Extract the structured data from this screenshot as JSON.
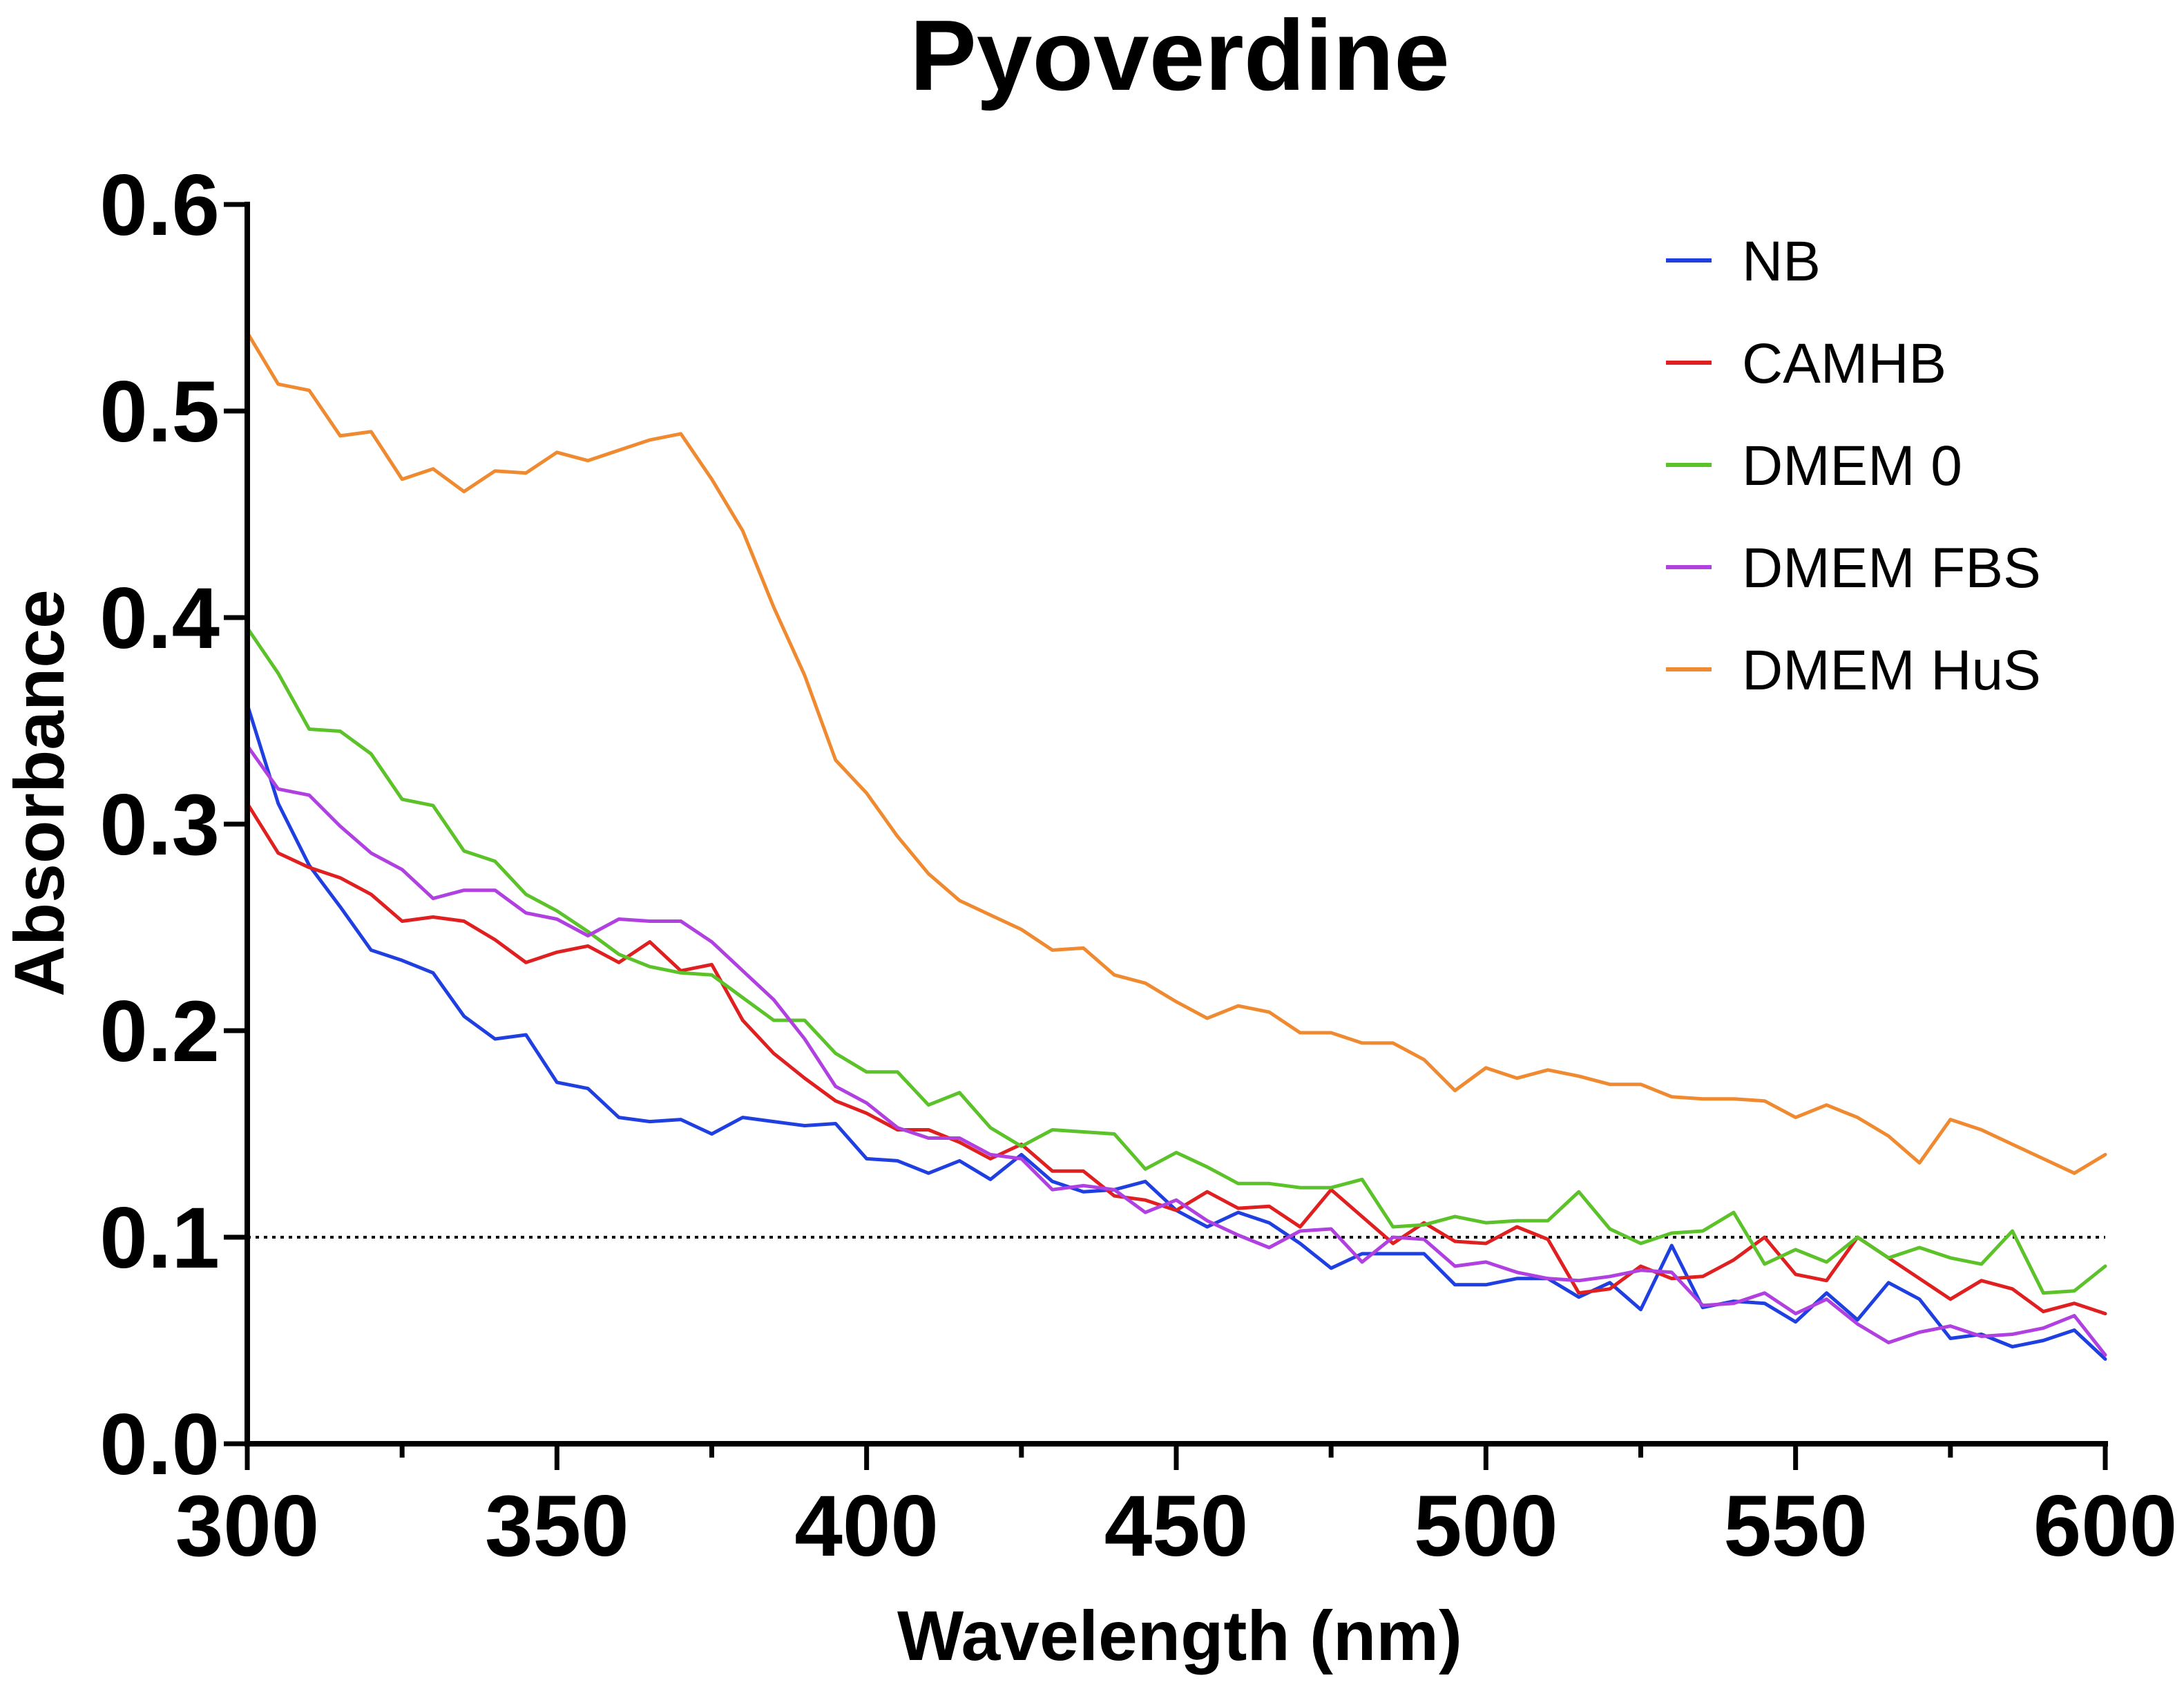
{
  "chart_data": {
    "type": "line",
    "title": "Pyoverdine",
    "xlabel": "Wavelength (nm)",
    "ylabel": "Absorbance",
    "xlim": [
      300,
      600
    ],
    "ylim": [
      0.0,
      0.6
    ],
    "x_major_ticks": [
      300,
      350,
      400,
      450,
      500,
      550,
      600
    ],
    "x_tick_labels": [
      "300",
      "350",
      "400",
      "450",
      "500",
      "550",
      "600"
    ],
    "x_minor_ticks": [
      325,
      375,
      425,
      475,
      525,
      575
    ],
    "y_ticks": [
      0.0,
      0.1,
      0.2,
      0.3,
      0.4,
      0.5,
      0.6
    ],
    "y_tick_labels": [
      "0.0",
      "0.1",
      "0.2",
      "0.3",
      "0.4",
      "0.5",
      "0.6"
    ],
    "reference_line": {
      "y": 0.1,
      "style": "dotted"
    },
    "legend_position": "top-right",
    "x": [
      300,
      305,
      310,
      315,
      320,
      325,
      330,
      335,
      340,
      345,
      350,
      355,
      360,
      365,
      370,
      375,
      380,
      385,
      390,
      395,
      400,
      405,
      410,
      415,
      420,
      425,
      430,
      435,
      440,
      445,
      450,
      455,
      460,
      465,
      470,
      475,
      480,
      485,
      490,
      495,
      500,
      505,
      510,
      515,
      520,
      525,
      530,
      535,
      540,
      545,
      550,
      555,
      560,
      565,
      570,
      575,
      580,
      585,
      590,
      595,
      600
    ],
    "series": [
      {
        "name": "NB",
        "color": "#1f3fe0",
        "values": [
          0.358,
          0.31,
          0.28,
          0.26,
          0.239,
          0.234,
          0.228,
          0.207,
          0.196,
          0.198,
          0.175,
          0.172,
          0.158,
          0.156,
          0.157,
          0.15,
          0.158,
          0.156,
          0.154,
          0.155,
          0.138,
          0.137,
          0.131,
          0.137,
          0.128,
          0.14,
          0.127,
          0.122,
          0.123,
          0.127,
          0.113,
          0.105,
          0.112,
          0.107,
          0.097,
          0.085,
          0.092,
          0.092,
          0.092,
          0.077,
          0.077,
          0.08,
          0.08,
          0.071,
          0.078,
          0.065,
          0.096,
          0.066,
          0.069,
          0.068,
          0.059,
          0.073,
          0.06,
          0.078,
          0.07,
          0.051,
          0.053,
          0.047,
          0.05,
          0.055,
          0.041
        ]
      },
      {
        "name": "CAMHB",
        "color": "#e02020",
        "values": [
          0.31,
          0.286,
          0.279,
          0.274,
          0.266,
          0.253,
          0.255,
          0.253,
          0.244,
          0.233,
          0.238,
          0.241,
          0.233,
          0.243,
          0.229,
          0.232,
          0.205,
          0.189,
          0.177,
          0.166,
          0.16,
          0.152,
          0.152,
          0.146,
          0.138,
          0.145,
          0.132,
          0.132,
          0.12,
          0.118,
          0.113,
          0.122,
          0.114,
          0.115,
          0.105,
          0.123,
          0.11,
          0.097,
          0.107,
          0.098,
          0.097,
          0.105,
          0.099,
          0.073,
          0.075,
          0.086,
          0.08,
          0.081,
          0.089,
          0.1,
          0.082,
          0.079,
          0.1,
          0.09,
          0.08,
          0.07,
          0.079,
          0.075,
          0.064,
          0.068,
          0.063
        ]
      },
      {
        "name": "DMEM 0",
        "color": "#5cc22a",
        "values": [
          0.395,
          0.373,
          0.346,
          0.345,
          0.334,
          0.312,
          0.309,
          0.287,
          0.282,
          0.266,
          0.258,
          0.248,
          0.237,
          0.231,
          0.228,
          0.227,
          0.216,
          0.205,
          0.205,
          0.189,
          0.18,
          0.18,
          0.164,
          0.17,
          0.153,
          0.144,
          0.152,
          0.151,
          0.15,
          0.133,
          0.141,
          0.134,
          0.126,
          0.126,
          0.124,
          0.124,
          0.128,
          0.105,
          0.106,
          0.11,
          0.107,
          0.108,
          0.108,
          0.122,
          0.104,
          0.097,
          0.102,
          0.103,
          0.112,
          0.087,
          0.094,
          0.088,
          0.1,
          0.09,
          0.095,
          0.09,
          0.087,
          0.103,
          0.073,
          0.074,
          0.086
        ]
      },
      {
        "name": "DMEM FBS",
        "color": "#b040e0",
        "values": [
          0.338,
          0.317,
          0.314,
          0.299,
          0.286,
          0.278,
          0.264,
          0.268,
          0.268,
          0.257,
          0.254,
          0.246,
          0.254,
          0.253,
          0.253,
          0.243,
          0.229,
          0.215,
          0.196,
          0.173,
          0.165,
          0.153,
          0.148,
          0.148,
          0.14,
          0.138,
          0.123,
          0.125,
          0.123,
          0.112,
          0.118,
          0.108,
          0.101,
          0.095,
          0.103,
          0.104,
          0.088,
          0.1,
          0.099,
          0.086,
          0.088,
          0.083,
          0.08,
          0.079,
          0.081,
          0.084,
          0.083,
          0.067,
          0.068,
          0.073,
          0.063,
          0.07,
          0.058,
          0.049,
          0.054,
          0.057,
          0.052,
          0.053,
          0.056,
          0.062,
          0.043
        ]
      },
      {
        "name": "DMEM HuS",
        "color": "#f08a30",
        "values": [
          0.538,
          0.513,
          0.51,
          0.488,
          0.49,
          0.467,
          0.472,
          0.461,
          0.471,
          0.47,
          0.48,
          0.476,
          0.481,
          0.486,
          0.489,
          0.467,
          0.442,
          0.405,
          0.372,
          0.331,
          0.315,
          0.294,
          0.276,
          0.263,
          0.256,
          0.249,
          0.239,
          0.24,
          0.227,
          0.223,
          0.214,
          0.206,
          0.212,
          0.209,
          0.199,
          0.199,
          0.194,
          0.194,
          0.186,
          0.171,
          0.182,
          0.177,
          0.181,
          0.178,
          0.174,
          0.174,
          0.168,
          0.167,
          0.167,
          0.166,
          0.158,
          0.164,
          0.158,
          0.149,
          0.136,
          0.157,
          0.152,
          0.145,
          0.138,
          0.131,
          0.14
        ]
      }
    ]
  }
}
